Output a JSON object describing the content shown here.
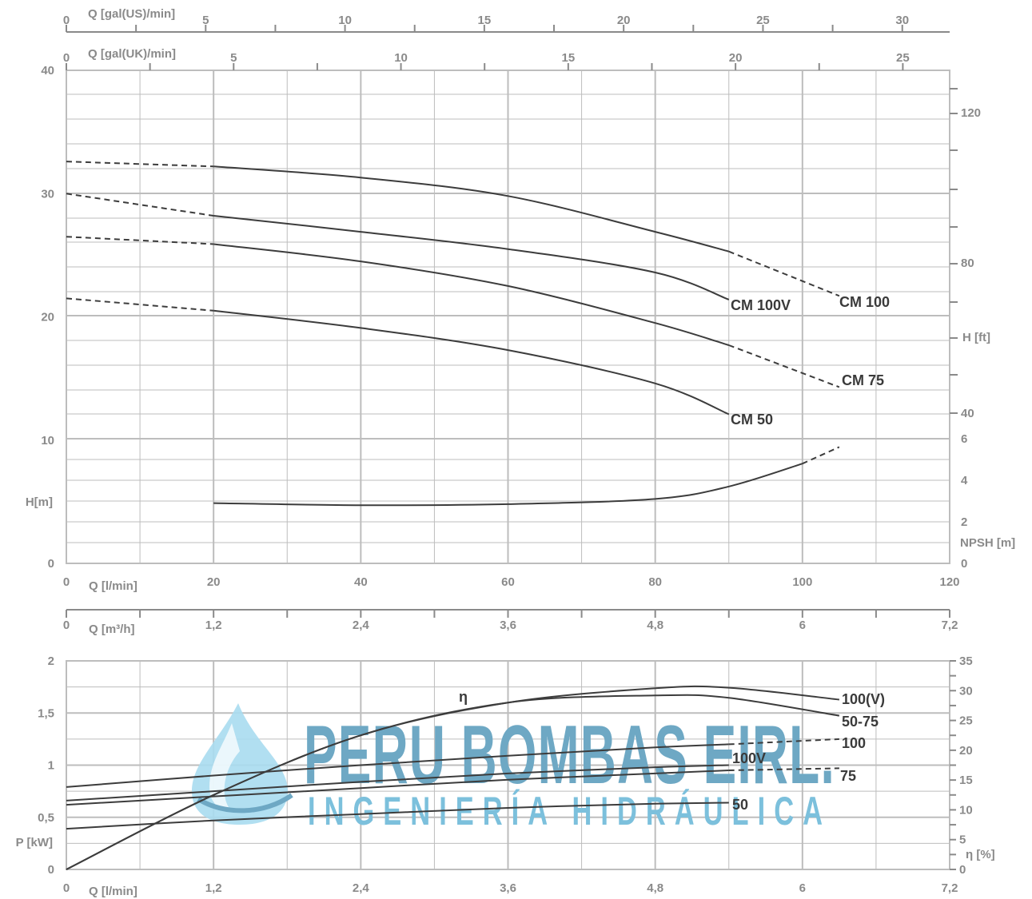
{
  "chart_data": [
    {
      "type": "line",
      "title": "",
      "axes": {
        "bottom_primary": {
          "label": "Q [l/min]",
          "range": [
            0,
            120
          ],
          "ticks": [
            "0",
            "20",
            "40",
            "60",
            "80",
            "100",
            "120"
          ]
        },
        "bottom_secondary": {
          "label": "Q [m³/h]",
          "range": [
            0,
            7.2
          ],
          "ticks": [
            "0",
            "1,2",
            "2,4",
            "3,6",
            "4,8",
            "6",
            "7,2"
          ]
        },
        "top_primary": {
          "label": "Q [gal(US)/min]",
          "range": [
            0,
            31.7
          ],
          "ticks": [
            "0",
            "5",
            "10",
            "15",
            "20",
            "25",
            "30"
          ]
        },
        "top_secondary": {
          "label": "Q [gal(UK)/min]",
          "range": [
            0,
            26.4
          ],
          "ticks": [
            "0",
            "5",
            "10",
            "15",
            "20",
            "25"
          ]
        },
        "left": {
          "label": "H[m]",
          "range": [
            0,
            40
          ],
          "ticks": [
            "0",
            "10",
            "20",
            "30",
            "40"
          ]
        },
        "right_head": {
          "label": "H [ft]",
          "range": [
            0,
            131.2
          ],
          "ticks": [
            "40",
            "80",
            "120"
          ]
        },
        "right_npsh": {
          "label": "NPSH [m]",
          "range": [
            0,
            20
          ],
          "ticks": [
            "0",
            "2",
            "4",
            "6"
          ]
        }
      },
      "series": [
        {
          "name": "CM 100",
          "unit": "m",
          "x": [
            0,
            20,
            40,
            60,
            80,
            90,
            105
          ],
          "y": [
            32.6,
            32.2,
            31.3,
            29.8,
            26.9,
            25.3,
            21.7
          ],
          "solid_range_x": [
            20,
            90
          ]
        },
        {
          "name": "CM 100V",
          "unit": "m",
          "x": [
            0,
            20,
            40,
            60,
            80,
            90
          ],
          "y": [
            30.0,
            28.2,
            26.9,
            25.5,
            23.6,
            21.4
          ],
          "solid_range_x": [
            20,
            90
          ]
        },
        {
          "name": "CM 75",
          "unit": "m",
          "x": [
            0,
            20,
            40,
            60,
            80,
            90,
            105
          ],
          "y": [
            26.5,
            25.9,
            24.5,
            22.5,
            19.5,
            17.7,
            14.3
          ],
          "solid_range_x": [
            20,
            90
          ]
        },
        {
          "name": "CM 50",
          "unit": "m",
          "x": [
            0,
            20,
            40,
            60,
            80,
            90
          ],
          "y": [
            21.5,
            20.5,
            19.1,
            17.3,
            14.6,
            12.1
          ],
          "solid_range_x": [
            20,
            90
          ]
        },
        {
          "name": "",
          "unit": "NPSH m",
          "x": [
            20,
            40,
            60,
            80,
            90,
            100,
            105
          ],
          "y": [
            2.9,
            2.8,
            2.85,
            3.1,
            3.7,
            4.8,
            5.6
          ],
          "solid_range_x": [
            20,
            100
          ]
        }
      ],
      "grid": true
    },
    {
      "type": "line",
      "title": "",
      "axes": {
        "bottom": {
          "label": "Q [l/min]",
          "range": [
            0,
            7.2
          ],
          "ticks": [
            "0",
            "1,2",
            "2,4",
            "3,6",
            "4,8",
            "6",
            "7,2"
          ]
        },
        "left": {
          "label": "P [kW]",
          "range": [
            0,
            2
          ],
          "ticks": [
            "0",
            "0,5",
            "1",
            "1,5",
            "2"
          ]
        },
        "right": {
          "label": "η [%]",
          "range": [
            0,
            35
          ],
          "ticks": [
            "0",
            "5",
            "10",
            "15",
            "20",
            "25",
            "30",
            "35"
          ]
        }
      },
      "series": [
        {
          "name": "100(V)",
          "unit": "η %",
          "x": [
            0,
            1.2,
            2.4,
            3.6,
            4.8,
            5.4,
            6.3
          ],
          "y": [
            0,
            12.5,
            22.5,
            28.0,
            30.4,
            30.5,
            28.5
          ]
        },
        {
          "name": "50-75",
          "unit": "η %",
          "x": [
            0,
            1.2,
            2.4,
            3.6,
            4.8,
            5.4,
            6.3
          ],
          "y": [
            0,
            12.5,
            22.5,
            28.0,
            29.2,
            28.8,
            25.8
          ]
        },
        {
          "name": "100",
          "unit": "kW",
          "x": [
            0,
            1.2,
            2.4,
            3.6,
            4.8,
            5.4,
            6.3
          ],
          "y": [
            0.79,
            0.9,
            1.0,
            1.09,
            1.17,
            1.2,
            1.25
          ],
          "solid_range_x": [
            0,
            5.4
          ]
        },
        {
          "name": "100V",
          "unit": "kW",
          "x": [
            0,
            1.2,
            2.4,
            3.6,
            4.8,
            5.4
          ],
          "y": [
            0.66,
            0.75,
            0.84,
            0.92,
            0.98,
            1.0
          ]
        },
        {
          "name": "75",
          "unit": "kW",
          "x": [
            0,
            1.2,
            2.4,
            3.6,
            4.8,
            5.4,
            6.3
          ],
          "y": [
            0.62,
            0.7,
            0.78,
            0.86,
            0.92,
            0.95,
            0.97
          ],
          "solid_range_x": [
            0,
            5.4
          ]
        },
        {
          "name": "50",
          "unit": "kW",
          "x": [
            0,
            1.2,
            2.4,
            3.6,
            4.8,
            5.4
          ],
          "y": [
            0.39,
            0.47,
            0.53,
            0.59,
            0.63,
            0.64
          ]
        }
      ],
      "annotations": [
        "η"
      ],
      "grid": true
    }
  ],
  "watermark": {
    "line1": "PERU BOMBAS EIRL.",
    "line2": "INGENIERÍA HIDRÁULICA",
    "color": "#6ea8c4"
  },
  "colors": {
    "grid": "#bdbdbd",
    "axis": "#8a8a8a",
    "curve": "#3c3c3c"
  }
}
